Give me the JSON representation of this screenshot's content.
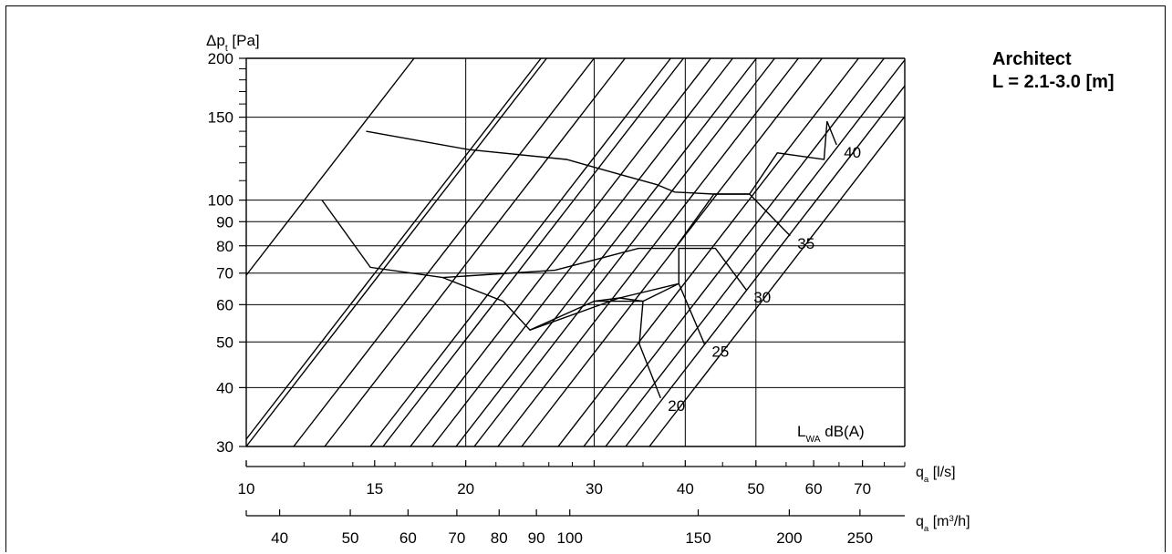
{
  "chart_data": {
    "type": "line",
    "title": "Architect",
    "subtitle": "L = 2.1-3.0 [m]",
    "ylabel_main": "Δp",
    "ylabel_sub": "t",
    "ylabel_unit": "[Pa]",
    "y_scale": "log",
    "ylim": [
      30,
      200
    ],
    "y_ticks": [
      30,
      40,
      50,
      60,
      70,
      80,
      90,
      100,
      150,
      200
    ],
    "y_minor_ticks": [
      110,
      120,
      130,
      140,
      160,
      170,
      180,
      190
    ],
    "x_scale": "log",
    "xlim": [
      10,
      80
    ],
    "x_axis_ls": {
      "label_main": "q",
      "label_sub": "a",
      "label_unit": "[l/s]",
      "ticks": [
        10,
        15,
        20,
        30,
        40,
        50,
        60,
        70
      ],
      "minor_ticks": [
        12,
        14,
        16,
        18,
        22,
        24,
        26,
        28,
        35,
        45,
        55,
        65,
        75,
        80
      ]
    },
    "x_axis_m3h": {
      "label_main": "q",
      "label_sub": "a",
      "label_unit": "[m",
      "label_sup": "3",
      "label_tail": "/h]",
      "ticks": [
        40,
        50,
        60,
        70,
        80,
        90,
        100,
        150,
        200,
        250
      ]
    },
    "grid": true,
    "noise_label_main": "L",
    "noise_label_sub": "WA",
    "noise_label_unit": " dB(A)",
    "noise_series": [
      {
        "name": "20",
        "points": [
          [
            30,
            61
          ],
          [
            35,
            61
          ],
          [
            34.6,
            49.5
          ],
          [
            37,
            38
          ]
        ]
      },
      {
        "name": "25",
        "points": [
          [
            24.5,
            53
          ],
          [
            30,
            61
          ],
          [
            32.5,
            62
          ],
          [
            35,
            61
          ],
          [
            39.2,
            66.5
          ],
          [
            42.5,
            49.5
          ]
        ]
      },
      {
        "name": "30",
        "points": [
          [
            18.6,
            68.5
          ],
          [
            22.5,
            61
          ],
          [
            24.5,
            53
          ],
          [
            32.5,
            62
          ],
          [
            39.2,
            66.5
          ],
          [
            39.2,
            79
          ],
          [
            44,
            79
          ],
          [
            48.5,
            64.5
          ]
        ]
      },
      {
        "name": "35",
        "points": [
          [
            12.7,
            100
          ],
          [
            14.8,
            72
          ],
          [
            18.6,
            68.5
          ],
          [
            26.5,
            71
          ],
          [
            34.5,
            79
          ],
          [
            38.7,
            79
          ],
          [
            43.8,
            103
          ],
          [
            49,
            103
          ],
          [
            55.7,
            84
          ]
        ]
      },
      {
        "name": "40",
        "points": [
          [
            14.6,
            140
          ],
          [
            20.2,
            128
          ],
          [
            27.5,
            122
          ],
          [
            32.8,
            113
          ],
          [
            36.5,
            108
          ],
          [
            38.7,
            104
          ],
          [
            43.8,
            103
          ],
          [
            49,
            103
          ],
          [
            53.5,
            126
          ],
          [
            62,
            122
          ],
          [
            62.6,
            147
          ],
          [
            64.5,
            131
          ]
        ]
      }
    ],
    "series_pa_labels": [
      20,
      25,
      30,
      35,
      40
    ]
  }
}
